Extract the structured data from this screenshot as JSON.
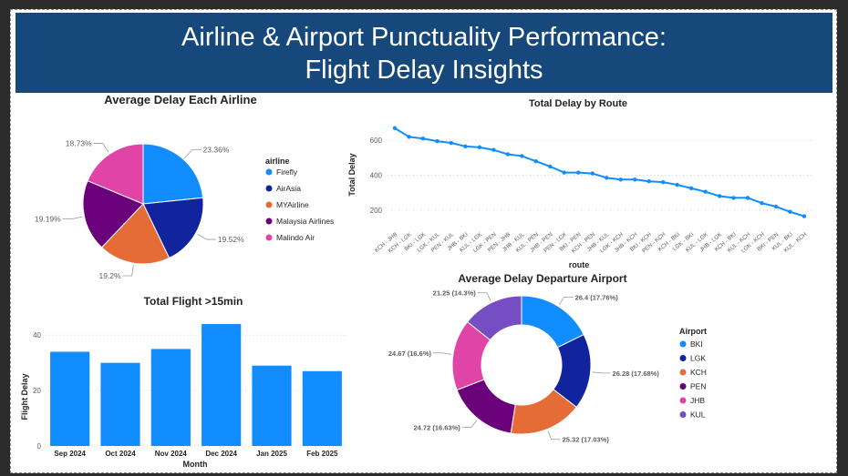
{
  "dashboard": {
    "title_line1": "Airline & Airport Punctuality Performance:",
    "title_line2": "Flight Delay Insights"
  },
  "chart_data": [
    {
      "type": "pie",
      "title": "Average Delay Each Airline",
      "legend_title": "airline",
      "legend_position": "right",
      "slices": [
        {
          "label": "Firefly",
          "value": 23.36,
          "pct_label": "23.36%",
          "color": "#118dff"
        },
        {
          "label": "AirAsia",
          "value": 19.52,
          "pct_label": "19.52%",
          "color": "#12239e"
        },
        {
          "label": "MYAirline",
          "value": 19.2,
          "pct_label": "19.2%",
          "color": "#e66c37"
        },
        {
          "label": "Malaysia Airlines",
          "value": 19.19,
          "pct_label": "19.19%",
          "color": "#6b007b"
        },
        {
          "label": "Malindo Air",
          "value": 18.73,
          "pct_label": "18.73%",
          "color": "#e044a7"
        }
      ]
    },
    {
      "type": "line",
      "title": "Total Delay by Route",
      "xlabel": "route",
      "ylabel": "Total Delay",
      "ylim": [
        100,
        700
      ],
      "yticks": [
        200,
        400,
        600
      ],
      "grid": true,
      "color": "#118dff",
      "x": [
        "KCH - JHB",
        "KCH - LGK",
        "BKI - LGK",
        "LGK - KUL",
        "PEN - KUL",
        "JHB - BKI",
        "KUL - LGK",
        "LGK - PEN",
        "PEN - JHB",
        "JHB - KUL",
        "KUL - PEN",
        "JHB - PEN",
        "PEN - LGK",
        "BKI - PEN",
        "KCH - PEN",
        "JHB - KUL",
        "LGK - KCH",
        "JHB - KCH",
        "BKI - KCH",
        "PEN - KCH",
        "KCH - BKI",
        "LGK - BKI",
        "KUL - LGK",
        "JHB - LGK",
        "KCH - BKI",
        "KUL - KCH",
        "LGK - KCH",
        "BKI - PEN",
        "KUL - BKI",
        "KUL - KCH"
      ],
      "values": [
        670,
        620,
        610,
        595,
        585,
        565,
        560,
        545,
        520,
        510,
        480,
        450,
        415,
        415,
        410,
        385,
        375,
        375,
        365,
        360,
        345,
        325,
        305,
        280,
        270,
        270,
        240,
        220,
        190,
        165
      ]
    },
    {
      "type": "bar",
      "title": "Total Flight >15min",
      "xlabel": "Month",
      "ylabel": "Flight Delay",
      "ylim": [
        0,
        45
      ],
      "yticks": [
        0,
        20,
        40
      ],
      "grid": true,
      "color": "#118dff",
      "categories": [
        "Sep 2024",
        "Oct 2024",
        "Nov 2024",
        "Dec 2024",
        "Jan 2025",
        "Feb 2025"
      ],
      "values": [
        34,
        30,
        35,
        44,
        29,
        27
      ]
    },
    {
      "type": "pie",
      "subtype": "donut",
      "title": "Average Delay Departure Airport",
      "legend_title": "Airport",
      "legend_position": "right",
      "slices": [
        {
          "label": "BKI",
          "value": 26.4,
          "value_label": "26.4 (17.76%)",
          "color": "#118dff"
        },
        {
          "label": "LGK",
          "value": 26.28,
          "value_label": "26.28 (17.68%)",
          "color": "#12239e"
        },
        {
          "label": "KCH",
          "value": 25.32,
          "value_label": "25.32 (17.03%)",
          "color": "#e66c37"
        },
        {
          "label": "PEN",
          "value": 24.72,
          "value_label": "24.72 (16.63%)",
          "color": "#6b007b"
        },
        {
          "label": "JHB",
          "value": 24.67,
          "value_label": "24.67 (16.6%)",
          "color": "#e044a7"
        },
        {
          "label": "KUL",
          "value": 21.25,
          "value_label": "21.25 (14.3%)",
          "color": "#744ec2"
        }
      ]
    }
  ]
}
